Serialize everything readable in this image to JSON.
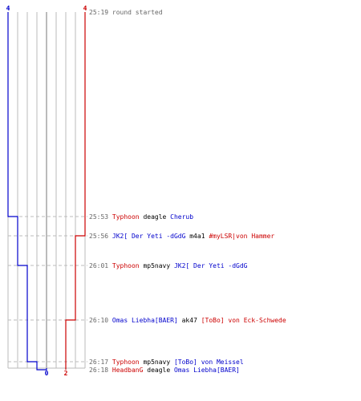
{
  "chart_data": {
    "type": "line",
    "x_axis_labels": [
      "0",
      "2"
    ],
    "start_labels": {
      "blue": "4",
      "red": "4"
    },
    "start_event": {
      "time": "25:19",
      "text": "round started"
    },
    "events": [
      {
        "time": "25:53",
        "killer": "Typhoon",
        "killer_team": "red",
        "weapon": "deagle",
        "victim": "Cherub",
        "victim_team": "blue",
        "blue": 3,
        "red": 4
      },
      {
        "time": "25:56",
        "killer": "JK2[ Der Yeti -dGdG",
        "killer_team": "blue",
        "weapon": "m4a1",
        "victim": "#myLSR|von Hammer",
        "victim_team": "red",
        "blue": 3,
        "red": 3
      },
      {
        "time": "26:01",
        "killer": "Typhoon",
        "killer_team": "red",
        "weapon": "mp5navy",
        "victim": "JK2[ Der Yeti -dGdG",
        "victim_team": "blue",
        "blue": 2,
        "red": 3
      },
      {
        "time": "26:10",
        "killer": "Omas Liebha[BAER]",
        "killer_team": "blue",
        "weapon": "ak47",
        "victim": "[ToBo] von Eck-Schwede",
        "victim_team": "red",
        "blue": 2,
        "red": 2
      },
      {
        "time": "26:17",
        "killer": "Typhoon",
        "killer_team": "red",
        "weapon": "mp5navy",
        "victim": "[ToBo] von Meissel",
        "victim_team": "blue",
        "blue": 1,
        "red": 2
      },
      {
        "time": "26:18",
        "killer": "HeadbanG",
        "killer_team": "red",
        "weapon": "deagle",
        "victim": "Omas Liebha[BAER]",
        "victim_team": "blue",
        "blue": 0,
        "red": 2
      }
    ],
    "series": [
      {
        "team": "blue",
        "color": "#0000cc",
        "values": [
          4,
          3,
          3,
          2,
          2,
          1,
          0
        ]
      },
      {
        "team": "red",
        "color": "#cc0000",
        "values": [
          4,
          4,
          3,
          3,
          2,
          2,
          2
        ]
      }
    ],
    "colors": {
      "blue": "#0000cc",
      "red": "#cc0000",
      "grid": "#bbbbbb",
      "center": "#777777",
      "dashed": "#bbbbbb",
      "time": "#666666",
      "weapon": "#000000"
    }
  }
}
